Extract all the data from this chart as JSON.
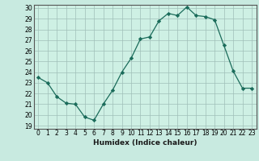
{
  "x": [
    0,
    1,
    2,
    3,
    4,
    5,
    6,
    7,
    8,
    9,
    10,
    11,
    12,
    13,
    14,
    15,
    16,
    17,
    18,
    19,
    20,
    21,
    22,
    23
  ],
  "y": [
    23.5,
    23.0,
    21.7,
    21.1,
    21.0,
    19.8,
    19.5,
    21.0,
    22.3,
    24.0,
    25.3,
    27.1,
    27.3,
    28.8,
    29.5,
    29.3,
    30.1,
    29.3,
    29.2,
    28.9,
    26.5,
    24.1,
    22.5,
    22.5
  ],
  "xlabel": "Humidex (Indice chaleur)",
  "ylim": [
    19,
    30
  ],
  "xlim": [
    -0.5,
    23.5
  ],
  "yticks": [
    19,
    20,
    21,
    22,
    23,
    24,
    25,
    26,
    27,
    28,
    29,
    30
  ],
  "xticks": [
    0,
    1,
    2,
    3,
    4,
    5,
    6,
    7,
    8,
    9,
    10,
    11,
    12,
    13,
    14,
    15,
    16,
    17,
    18,
    19,
    20,
    21,
    22,
    23
  ],
  "line_color": "#1a6b5a",
  "marker": "D",
  "markersize": 2.2,
  "linewidth": 0.9,
  "bg_color": "#c8eae0",
  "grid_color": "#a0bfb8",
  "plot_bg": "#cef0e4",
  "tick_fontsize": 5.5,
  "xlabel_fontsize": 6.5
}
